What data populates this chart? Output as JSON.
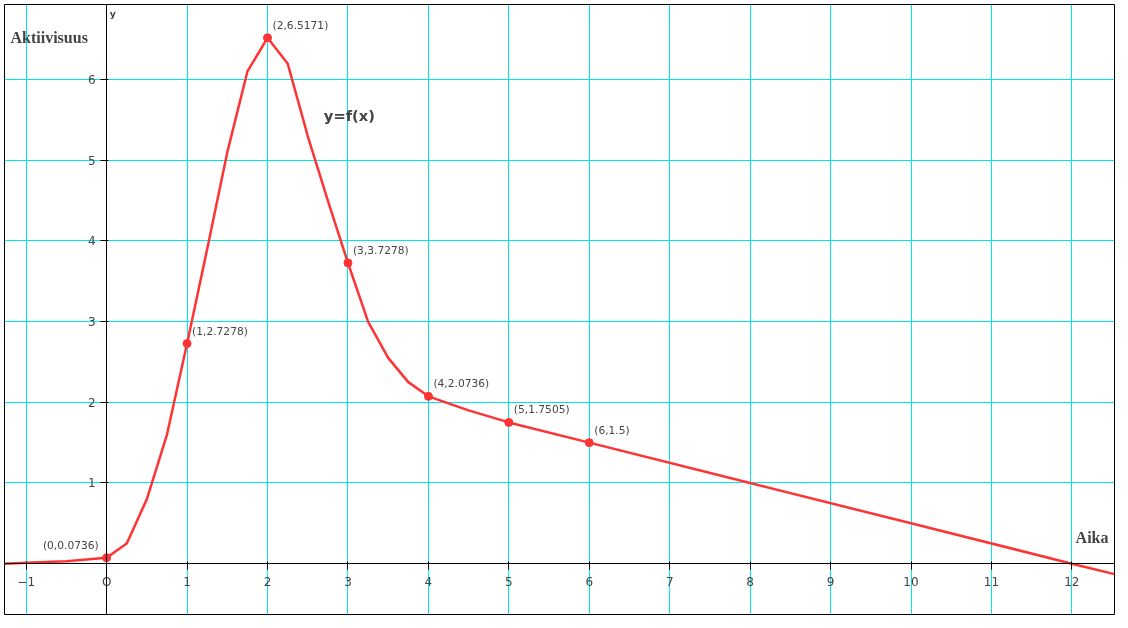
{
  "chart_data": {
    "type": "line",
    "xlabel": "Aika",
    "ylabel": "Aktiivisuus",
    "annotations": [
      "y",
      "y=f(x)"
    ],
    "xlim": [
      -1.27,
      12.53
    ],
    "ylim": [
      -0.63,
      6.93
    ],
    "xticks": [
      -1,
      {
        "value": 0,
        "label": "O"
      },
      1,
      2,
      3,
      4,
      5,
      6,
      7,
      8,
      9,
      10,
      11,
      12
    ],
    "yticks": [
      {
        "value": 0,
        "label": null
      },
      1,
      2,
      3,
      4,
      5,
      6
    ],
    "grid": true,
    "series": [
      {
        "color": "#ff3333",
        "marker": "none",
        "x": [
          -1.27,
          -1,
          -0.5,
          0,
          0.25,
          0.5,
          0.75,
          1,
          1.25,
          1.5,
          1.75,
          2,
          2.25,
          2.5,
          2.75,
          3,
          3.25,
          3.5,
          3.75,
          4,
          4.5,
          5,
          6,
          8,
          10,
          12,
          12.53
        ],
        "values": [
          0.0,
          0.01,
          0.03,
          0.0736,
          0.25,
          0.8,
          1.6,
          2.7278,
          3.9,
          5.1,
          6.1,
          6.5171,
          6.2,
          5.3,
          4.5,
          3.7278,
          3.0,
          2.55,
          2.25,
          2.0736,
          1.9,
          1.7505,
          1.5,
          1.0,
          0.5,
          0.0,
          -0.13
        ]
      },
      {
        "type": "scatter",
        "color": "#ff3333",
        "marker": "circle",
        "x": [
          0,
          1,
          2,
          3,
          4,
          5,
          6
        ],
        "values": [
          0.0736,
          2.7278,
          6.5171,
          3.7278,
          2.0736,
          1.7505,
          1.5
        ],
        "value_labels": [
          "(0,0.0736)",
          "(1,2.7278)",
          "(2,6.5171)",
          "(3,3.7278)",
          "(4,2.0736)",
          "(5,1.7505)",
          "(6,1.5)"
        ]
      }
    ]
  }
}
